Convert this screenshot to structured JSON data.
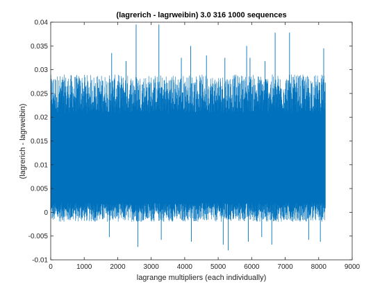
{
  "chart_data": {
    "type": "line",
    "title": "(lagrerich - lagrweibin) 3.0 316 1000 sequences",
    "xlabel": "lagrange multipliers (each individually)",
    "ylabel": "(lagrerich - lagrweibin)",
    "xlim": [
      0,
      9000
    ],
    "ylim": [
      -0.01,
      0.04
    ],
    "xticks": [
      "0",
      "1000",
      "2000",
      "3000",
      "4000",
      "5000",
      "6000",
      "7000",
      "8000",
      "9000"
    ],
    "yticks": [
      "-0.01",
      "-0.005",
      "0",
      "0.005",
      "0.01",
      "0.015",
      "0.02",
      "0.025",
      "0.03",
      "0.035",
      "0.04"
    ],
    "grid": false,
    "series": [
      {
        "color": "#0072BD",
        "x_range": [
          1,
          8200
        ],
        "band_low": [
          -0.002,
          0.002
        ],
        "band_high": [
          0.021,
          0.029
        ],
        "spikes": [
          {
            "x": 2550,
            "y": 0.0395
          },
          {
            "x": 3230,
            "y": 0.0395
          },
          {
            "x": 4180,
            "y": 0.035
          },
          {
            "x": 6700,
            "y": 0.0378
          },
          {
            "x": 7130,
            "y": 0.0378
          },
          {
            "x": 5850,
            "y": 0.035
          },
          {
            "x": 1820,
            "y": 0.0335
          },
          {
            "x": 8150,
            "y": 0.0345
          },
          {
            "x": 4650,
            "y": 0.033
          },
          {
            "x": 5200,
            "y": 0.0325
          },
          {
            "x": 3900,
            "y": 0.0325
          },
          {
            "x": 5950,
            "y": 0.0325
          },
          {
            "x": 2250,
            "y": 0.0318
          },
          {
            "x": 6400,
            "y": 0.0318
          },
          {
            "x": 2600,
            "y": -0.0073
          },
          {
            "x": 5150,
            "y": -0.0068
          },
          {
            "x": 5300,
            "y": -0.008
          },
          {
            "x": 6600,
            "y": -0.0068
          },
          {
            "x": 5900,
            "y": -0.0062
          },
          {
            "x": 4200,
            "y": -0.0062
          },
          {
            "x": 3300,
            "y": -0.0058
          },
          {
            "x": 7700,
            "y": -0.0058
          },
          {
            "x": 8050,
            "y": -0.0062
          },
          {
            "x": 1750,
            "y": -0.0052
          },
          {
            "x": 6300,
            "y": -0.0052
          }
        ]
      }
    ]
  }
}
